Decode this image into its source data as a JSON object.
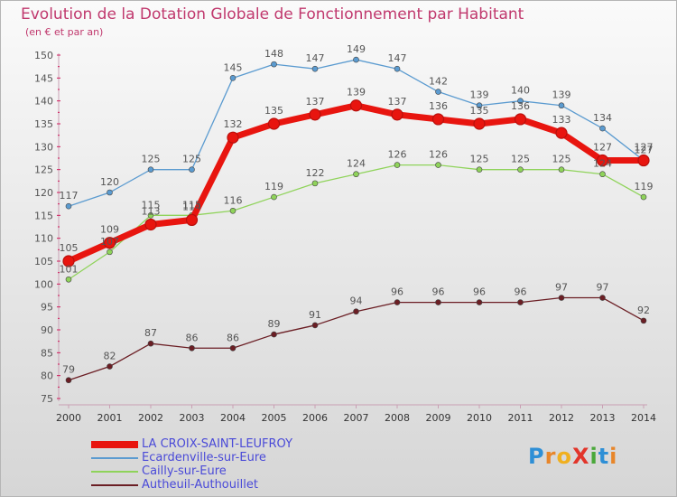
{
  "title": "Evolution de la Dotation Globale de Fonctionnement par Habitant",
  "subtitle": "(en € et par an)",
  "logo_text": "ProXiti",
  "logo_letters": [
    {
      "char": "P",
      "color": "#2e8fd6"
    },
    {
      "char": "r",
      "color": "#e8862a"
    },
    {
      "char": "o",
      "color": "#f0b020"
    },
    {
      "char": "X",
      "color": "#e2352a"
    },
    {
      "char": "i",
      "color": "#4aa83a"
    },
    {
      "char": "t",
      "color": "#2e8fd6"
    },
    {
      "char": "i",
      "color": "#e8862a"
    }
  ],
  "chart_data": {
    "type": "line",
    "title": "Evolution de la Dotation Globale de Fonctionnement par Habitant",
    "subtitle": "(en € et par an)",
    "x": [
      "2000",
      "2001",
      "2002",
      "2003",
      "2004",
      "2005",
      "2006",
      "2007",
      "2008",
      "2009",
      "2010",
      "2011",
      "2012",
      "2013",
      "2014"
    ],
    "ylim": [
      75,
      150
    ],
    "yticks": [
      75,
      80,
      85,
      90,
      95,
      100,
      105,
      110,
      115,
      120,
      125,
      130,
      135,
      140,
      145,
      150
    ],
    "grid": false,
    "legend_position": "bottom-left",
    "series": [
      {
        "name": "LA CROIX-SAINT-LEUFROY",
        "color": "#e8150f",
        "values": [
          105,
          109,
          113,
          114,
          132,
          135,
          137,
          139,
          137,
          136,
          135,
          136,
          133,
          127,
          127
        ]
      },
      {
        "name": "Ecardenville-sur-Eure",
        "color": "#5b9bd0",
        "values": [
          117,
          120,
          125,
          125,
          145,
          148,
          147,
          149,
          147,
          142,
          139,
          140,
          139,
          134,
          127
        ]
      },
      {
        "name": "Cailly-sur-Eure",
        "color": "#8fd35a",
        "values": [
          101,
          107,
          115,
          115,
          116,
          119,
          122,
          124,
          126,
          126,
          125,
          125,
          125,
          124,
          119
        ]
      },
      {
        "name": "Autheuil-Authouillet",
        "color": "#6b1e24",
        "values": [
          79,
          82,
          87,
          86,
          86,
          89,
          91,
          94,
          96,
          96,
          96,
          96,
          97,
          97,
          92
        ]
      }
    ]
  }
}
